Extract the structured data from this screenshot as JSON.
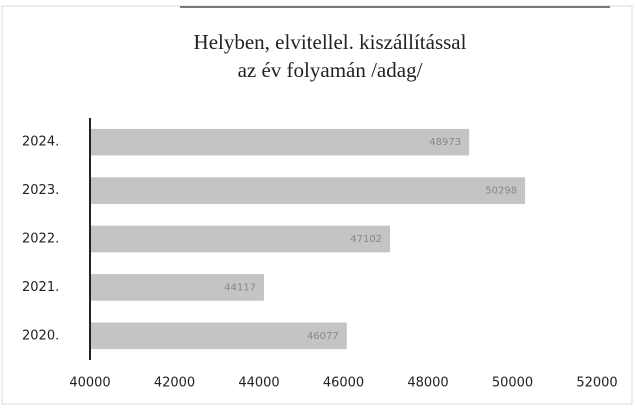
{
  "chart_data": {
    "type": "bar",
    "orientation": "horizontal",
    "title": [
      "Helyben, elvitellel. kiszállítással",
      "az év folyamán /adag/"
    ],
    "categories": [
      "2024.",
      "2023.",
      "2022.",
      "2021.",
      "2020."
    ],
    "values": [
      48973,
      50298,
      47102,
      44117,
      46077
    ],
    "color": "#c4c4c4",
    "xlim": [
      40000,
      52000
    ],
    "xticks": [
      40000,
      42000,
      44000,
      46000,
      48000,
      50000,
      52000
    ],
    "grid": false
  }
}
